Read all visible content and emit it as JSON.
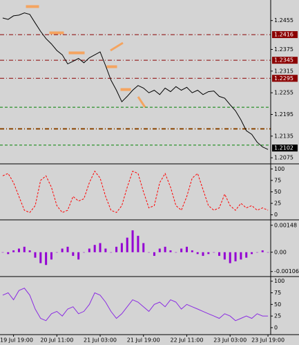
{
  "chart_data": [
    {
      "type": "line",
      "color": "#000000",
      "categories": [
        null,
        null,
        "19 Jul 19:00",
        null,
        null,
        null,
        null,
        null,
        null,
        null,
        "20 Jul 11:00",
        null,
        null,
        null,
        null,
        null,
        null,
        null,
        "21 Jul 03:00",
        null,
        null,
        null,
        null,
        null,
        null,
        null,
        "21 Jul 19:00",
        null,
        null,
        null,
        null,
        null,
        null,
        null,
        "22 Jul 11:00",
        null,
        null,
        null,
        null,
        null,
        null,
        null,
        "23 Jul 03:00",
        null,
        null,
        null,
        null,
        null,
        null,
        "23 Jul 19:00"
      ],
      "values": [
        1.2462,
        1.2458,
        1.2468,
        1.247,
        1.2476,
        1.2472,
        1.2448,
        1.2425,
        1.2405,
        1.239,
        1.2372,
        1.236,
        1.2335,
        1.2342,
        1.235,
        1.2338,
        1.2352,
        1.236,
        1.2368,
        1.233,
        1.229,
        1.2262,
        1.223,
        1.2245,
        1.2262,
        1.2275,
        1.2268,
        1.2255,
        1.2262,
        1.225,
        1.2268,
        1.2258,
        1.2272,
        1.2262,
        1.227,
        1.2255,
        1.2262,
        1.225,
        1.2258,
        1.226,
        1.2245,
        1.224,
        1.2222,
        1.2205,
        1.218,
        1.215,
        1.214,
        1.2118,
        1.2105,
        1.2098
      ],
      "ylim": [
        1.2062,
        1.2508
      ],
      "yticks": [
        1.2455,
        1.2375,
        1.2315,
        1.2255,
        1.2195,
        1.2135,
        1.2075
      ],
      "levels": [
        {
          "value": 1.2416,
          "label": "1.2416",
          "color": "#8b0000",
          "style": "dashdot"
        },
        {
          "value": 1.2345,
          "label": "1.2345",
          "color": "#8b0000",
          "style": "dashdot"
        },
        {
          "value": 1.2295,
          "label": "1.2295",
          "color": "#8b0000",
          "style": "dashdot"
        },
        {
          "value": 1.2215,
          "color": "#008000",
          "style": "dashed"
        },
        {
          "value": 1.2155,
          "color": "#8b4500",
          "style": "dashdot-thick"
        },
        {
          "value": 1.211,
          "color": "#008000",
          "style": "dashed"
        }
      ],
      "current": 1.2102
    },
    {
      "type": "line",
      "color": "#ff0000",
      "line_style": "dashed",
      "values": [
        85,
        90,
        70,
        40,
        10,
        5,
        20,
        75,
        85,
        60,
        20,
        5,
        10,
        40,
        30,
        35,
        70,
        95,
        80,
        40,
        10,
        5,
        20,
        60,
        95,
        90,
        50,
        15,
        20,
        70,
        90,
        60,
        20,
        10,
        40,
        80,
        90,
        55,
        20,
        10,
        15,
        45,
        20,
        10,
        25,
        15,
        20,
        10,
        15,
        10
      ],
      "ylim": [
        -8,
        108
      ],
      "yticks": [
        100,
        75,
        50,
        25,
        0
      ]
    },
    {
      "type": "bar",
      "color": "#9400d3",
      "values": [
        0,
        -0.0001,
        0.0001,
        0.0002,
        0.0003,
        0.0001,
        -0.0003,
        -0.0006,
        -0.0007,
        -0.0004,
        0,
        0.0002,
        0.0003,
        -0.0002,
        -0.0004,
        0,
        0.0002,
        0.0004,
        0.0005,
        0.0002,
        0,
        0.0003,
        0.0005,
        0.0008,
        0.0012,
        0.0009,
        0.0005,
        0,
        -0.0002,
        0.0002,
        0.0003,
        0.0001,
        0,
        0.0002,
        0.0003,
        0.0001,
        -0.0001,
        -0.0002,
        -0.0001,
        0,
        -0.0002,
        -0.0004,
        -0.0006,
        -0.0005,
        -0.0004,
        -0.0003,
        -0.0001,
        0,
        0.0001,
        0
      ],
      "ylim": [
        -0.00126,
        0.0017
      ],
      "yticks": [
        0.00148,
        {
          "value": 0,
          "label": "0.00"
        },
        -0.00106
      ]
    },
    {
      "type": "line",
      "color": "#8a2be2",
      "values": [
        70,
        75,
        60,
        80,
        85,
        70,
        40,
        20,
        15,
        30,
        35,
        25,
        40,
        45,
        30,
        35,
        50,
        75,
        70,
        55,
        35,
        20,
        30,
        45,
        60,
        55,
        45,
        35,
        50,
        55,
        45,
        60,
        55,
        40,
        50,
        45,
        40,
        35,
        30,
        25,
        20,
        30,
        25,
        15,
        20,
        25,
        20,
        30,
        25,
        25
      ],
      "ylim": [
        -12,
        107
      ],
      "yticks": [
        100,
        75,
        50,
        25,
        0
      ]
    }
  ]
}
